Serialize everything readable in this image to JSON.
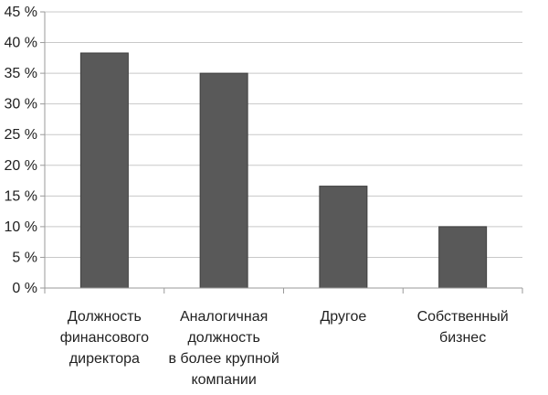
{
  "chart_data": {
    "type": "bar",
    "title": "",
    "xlabel": "",
    "ylabel": "",
    "categories": [
      [
        "Должность",
        "финансового",
        "директора"
      ],
      [
        "Аналогичная",
        "должность",
        "в более крупной",
        "компании"
      ],
      [
        "Другое"
      ],
      [
        "Собственный",
        "бизнес"
      ]
    ],
    "values": [
      38.3,
      35,
      16.6,
      10
    ],
    "ylim": [
      0,
      45
    ],
    "yticks": [
      0,
      5,
      10,
      15,
      20,
      25,
      30,
      35,
      40,
      45
    ],
    "ytick_suffix": " %",
    "grid": true,
    "legend": "none",
    "colors": {
      "bar": "#595959",
      "grid": "#c8c8c8",
      "axis": "#9a9a9a"
    }
  }
}
